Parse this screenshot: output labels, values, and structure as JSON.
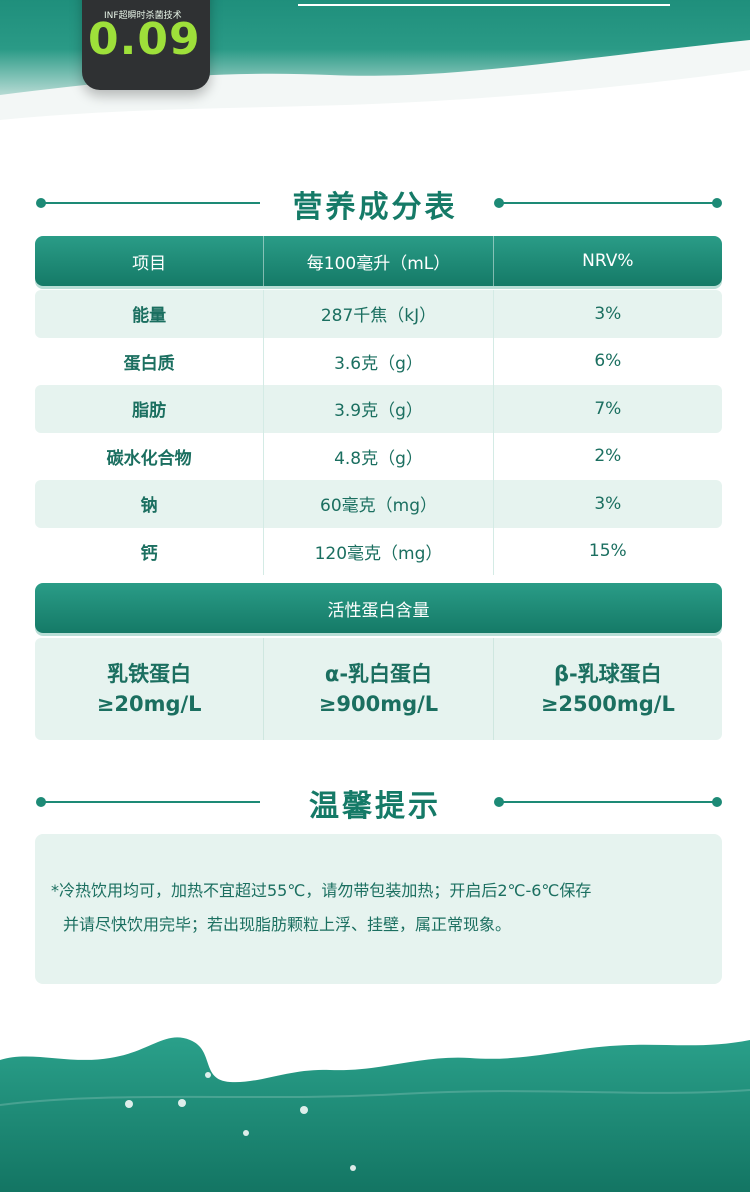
{
  "product": {
    "subtitle": "INF超瞬时杀菌技术",
    "number": "0.09"
  },
  "nutrition": {
    "title": "营养成分表",
    "headers": [
      "项目",
      "每100毫升（mL）",
      "NRV%"
    ],
    "rows": [
      {
        "name": "能量",
        "amount": "287千焦（kJ）",
        "nrv": "3%"
      },
      {
        "name": "蛋白质",
        "amount": "3.6克（g）",
        "nrv": "6%"
      },
      {
        "name": "脂肪",
        "amount": "3.9克（g）",
        "nrv": "7%"
      },
      {
        "name": "碳水化合物",
        "amount": "4.8克（g）",
        "nrv": "2%"
      },
      {
        "name": "钠",
        "amount": "60毫克（mg）",
        "nrv": "3%"
      },
      {
        "name": "钙",
        "amount": "120毫克（mg）",
        "nrv": "15%"
      }
    ]
  },
  "active_protein": {
    "title": "活性蛋白含量",
    "items": [
      {
        "name": "乳铁蛋白",
        "value": "≥20mg/L"
      },
      {
        "name": "α-乳白蛋白",
        "value": "≥900mg/L"
      },
      {
        "name": "β-乳球蛋白",
        "value": "≥2500mg/L"
      }
    ]
  },
  "tips": {
    "title": "温馨提示",
    "line1": "*冷热饮用均可，加热不宜超过55℃，请勿带包装加热；开启后2℃-6℃保存",
    "line2": "并请尽快饮用完毕；若出现脂肪颗粒上浮、挂壁，属正常现象。"
  },
  "colors": {
    "brand_green": "#157a67",
    "accent_teal": "#2a9c87",
    "row_shade": "#e6f3ef",
    "text_green": "#1b6f60"
  }
}
